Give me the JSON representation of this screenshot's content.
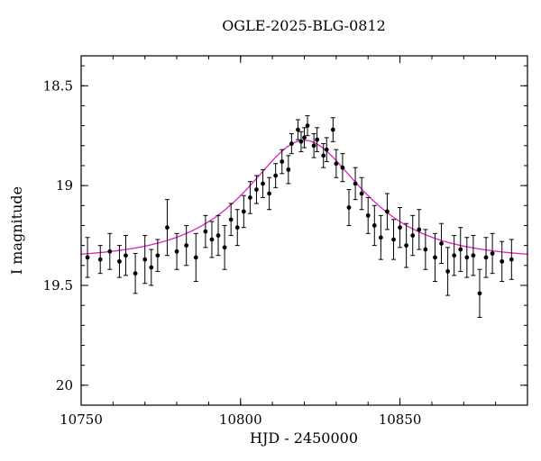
{
  "chart_data": {
    "type": "scatter",
    "title": "OGLE-2025-BLG-0812",
    "xlabel": "HJD - 2450000",
    "ylabel": "I magnitude",
    "xlim": [
      10750,
      10890
    ],
    "ylim": [
      18.35,
      20.1
    ],
    "y_axis_inverted_magnitude": true,
    "grid": false,
    "x_major_ticks": [
      {
        "v": 10750,
        "label": "10750"
      },
      {
        "v": 10800,
        "label": "10800"
      },
      {
        "v": 10850,
        "label": "10850"
      }
    ],
    "x_minor_step": 10,
    "y_major_ticks": [
      {
        "v": 18.5,
        "label": "18.5"
      },
      {
        "v": 19,
        "label": "19"
      },
      {
        "v": 19.5,
        "label": "19.5"
      },
      {
        "v": 20,
        "label": "20"
      }
    ],
    "y_minor_step": 0.1,
    "point_color": "#000000",
    "model": {
      "name": "paczynski-microlensing-fit",
      "t0": 10820,
      "tE": 27,
      "u0": 0.67,
      "baseline_mag": 19.37,
      "color": "#e020c0"
    },
    "points_format": [
      "hjd_minus_2450000",
      "i_magnitude",
      "error"
    ],
    "points": [
      [
        10752,
        19.36,
        0.1
      ],
      [
        10756,
        19.37,
        0.07
      ],
      [
        10759,
        19.33,
        0.09
      ],
      [
        10762,
        19.38,
        0.08
      ],
      [
        10764,
        19.35,
        0.1
      ],
      [
        10767,
        19.44,
        0.1
      ],
      [
        10770,
        19.37,
        0.12
      ],
      [
        10772,
        19.41,
        0.09
      ],
      [
        10774,
        19.35,
        0.08
      ],
      [
        10777,
        19.21,
        0.14
      ],
      [
        10780,
        19.33,
        0.09
      ],
      [
        10783,
        19.3,
        0.1
      ],
      [
        10786,
        19.36,
        0.12
      ],
      [
        10789,
        19.23,
        0.08
      ],
      [
        10791,
        19.27,
        0.09
      ],
      [
        10793,
        19.25,
        0.1
      ],
      [
        10795,
        19.31,
        0.11
      ],
      [
        10797,
        19.17,
        0.08
      ],
      [
        10799,
        19.21,
        0.09
      ],
      [
        10801,
        19.13,
        0.08
      ],
      [
        10803,
        19.06,
        0.08
      ],
      [
        10805,
        19.02,
        0.07
      ],
      [
        10807,
        18.99,
        0.07
      ],
      [
        10809,
        19.04,
        0.08
      ],
      [
        10811,
        18.95,
        0.06
      ],
      [
        10813,
        18.88,
        0.06
      ],
      [
        10815,
        18.92,
        0.07
      ],
      [
        10816,
        18.79,
        0.05
      ],
      [
        10818,
        18.72,
        0.05
      ],
      [
        10819,
        18.78,
        0.05
      ],
      [
        10820,
        18.76,
        0.05
      ],
      [
        10821,
        18.7,
        0.05
      ],
      [
        10823,
        18.8,
        0.06
      ],
      [
        10824,
        18.77,
        0.06
      ],
      [
        10826,
        18.85,
        0.06
      ],
      [
        10827,
        18.82,
        0.06
      ],
      [
        10829,
        18.72,
        0.06
      ],
      [
        10830,
        18.89,
        0.07
      ],
      [
        10832,
        18.91,
        0.07
      ],
      [
        10834,
        19.11,
        0.09
      ],
      [
        10836,
        18.99,
        0.08
      ],
      [
        10838,
        19.04,
        0.08
      ],
      [
        10840,
        19.15,
        0.09
      ],
      [
        10842,
        19.2,
        0.1
      ],
      [
        10844,
        19.26,
        0.11
      ],
      [
        10846,
        19.13,
        0.09
      ],
      [
        10848,
        19.27,
        0.1
      ],
      [
        10850,
        19.21,
        0.1
      ],
      [
        10852,
        19.3,
        0.11
      ],
      [
        10854,
        19.25,
        0.1
      ],
      [
        10856,
        19.22,
        0.1
      ],
      [
        10858,
        19.32,
        0.1
      ],
      [
        10861,
        19.36,
        0.12
      ],
      [
        10863,
        19.29,
        0.1
      ],
      [
        10865,
        19.43,
        0.12
      ],
      [
        10867,
        19.35,
        0.1
      ],
      [
        10869,
        19.32,
        0.11
      ],
      [
        10871,
        19.36,
        0.1
      ],
      [
        10873,
        19.35,
        0.1
      ],
      [
        10875,
        19.54,
        0.12
      ],
      [
        10877,
        19.36,
        0.1
      ],
      [
        10879,
        19.34,
        0.1
      ],
      [
        10882,
        19.38,
        0.1
      ],
      [
        10885,
        19.37,
        0.1
      ]
    ]
  }
}
